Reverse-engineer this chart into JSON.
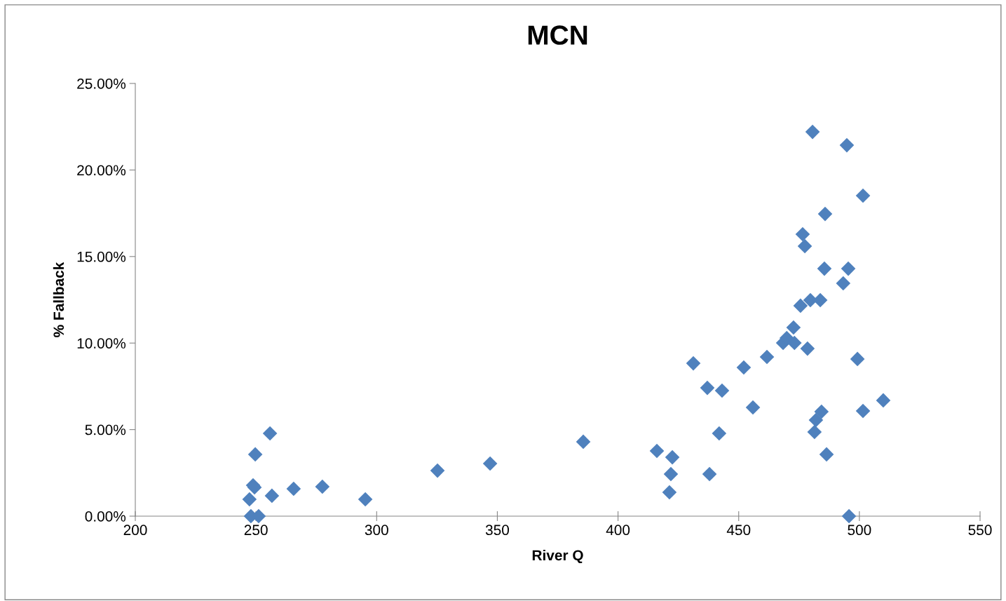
{
  "chart_data": {
    "type": "scatter",
    "title": "MCN",
    "xlabel": "River Q",
    "ylabel": "% Fallback",
    "x": [
      247.3,
      247.9,
      248.8,
      249.4,
      251.1,
      249.7,
      255.8,
      256.6,
      265.6,
      277.5,
      295.3,
      325.2,
      347.0,
      385.6,
      416.1,
      422.5,
      421.9,
      421.3,
      431.2,
      437.0,
      443.1,
      437.9,
      441.9,
      452.1,
      455.9,
      461.7,
      468.4,
      469.9,
      473.1,
      472.7,
      478.5,
      475.6,
      479.7,
      483.8,
      476.5,
      477.4,
      480.6,
      485.8,
      485.5,
      493.3,
      495.4,
      494.8,
      501.5,
      499.2,
      484.3,
      482.0,
      481.4,
      486.4,
      495.7,
      501.5,
      509.9
    ],
    "values": [
      0.97,
      0,
      1.78,
      1.66,
      0,
      3.57,
      4.78,
      1.18,
      1.58,
      1.7,
      0.97,
      2.63,
      3.04,
      4.3,
      3.77,
      3.4,
      2.43,
      1.38,
      8.83,
      7.41,
      7.25,
      2.43,
      4.78,
      8.59,
      6.28,
      9.2,
      10.01,
      10.29,
      10.01,
      10.9,
      9.68,
      12.16,
      12.48,
      12.48,
      16.29,
      15.6,
      22.2,
      17.46,
      14.3,
      13.45,
      14.3,
      21.43,
      18.52,
      9.08,
      6.04,
      5.55,
      4.86,
      3.57,
      0,
      6.08,
      6.69
    ],
    "color": "#4f81bd",
    "marker": "diamond",
    "xlim": [
      200,
      550
    ],
    "xticks": [
      200,
      250,
      300,
      350,
      400,
      450,
      500,
      550
    ],
    "ylim": [
      0,
      25
    ],
    "yticks": [
      {
        "value": 0,
        "label": "0.00%"
      },
      {
        "value": 5,
        "label": "5.00%"
      },
      {
        "value": 10,
        "label": "10.00%"
      },
      {
        "value": 15,
        "label": "15.00%"
      },
      {
        "value": 20,
        "label": "20.00%"
      },
      {
        "value": 25,
        "label": "25.00%"
      }
    ],
    "grid": false,
    "legend": false
  }
}
